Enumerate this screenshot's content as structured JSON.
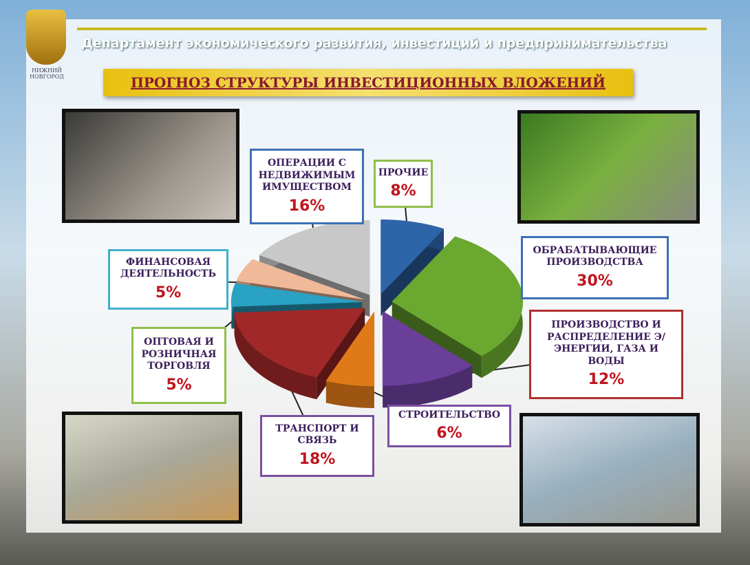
{
  "header": {
    "department": "Департамент экономического развития, инвестиций и предпринимательства",
    "logo_text": "НИЖНИЙ НОВГОРОД"
  },
  "chart_data": {
    "type": "pie",
    "title": "ПРОГНОЗ СТРУКТУРЫ ИНВЕСТИЦИОННЫХ ВЛОЖЕНИЙ",
    "categories": [
      "ПРОЧИЕ",
      "ОБРАБАТЫВАЮЩИЕ ПРОИЗВОДСТВА",
      "ПРОИЗВОДСТВО И РАСПРЕДЕЛЕНИЕ Э/ЭНЕРГИИ, ГАЗА И ВОДЫ",
      "СТРОИТЕЛЬСТВО",
      "ТРАНСПОРТ И СВЯЗЬ",
      "ОПТОВАЯ И РОЗНИЧНАЯ ТОРГОВЛЯ",
      "ФИНАНСОВАЯ ДЕЯТЕЛЬНОСТЬ",
      "ОПЕРАЦИИ С НЕДВИЖИМЫМ ИМУЩЕСТВОМ"
    ],
    "values": [
      8,
      30,
      12,
      6,
      18,
      5,
      5,
      16
    ],
    "value_labels": [
      "8%",
      "30%",
      "12%",
      "6%",
      "18%",
      "5%",
      "5%",
      "16%"
    ],
    "colors": [
      "#2e64a8",
      "#6aa830",
      "#6a3f9a",
      "#e07a18",
      "#a02828",
      "#29a2c4",
      "#f0b99a",
      "#c8c8c8"
    ],
    "label_box_colors": [
      "#8fbf4a",
      "#3d6fb5",
      "#b03030",
      "#7b4fa0",
      "#7b4fa0",
      "#8fbf4a",
      "#3fb0cc",
      "#3d6fb5"
    ]
  }
}
